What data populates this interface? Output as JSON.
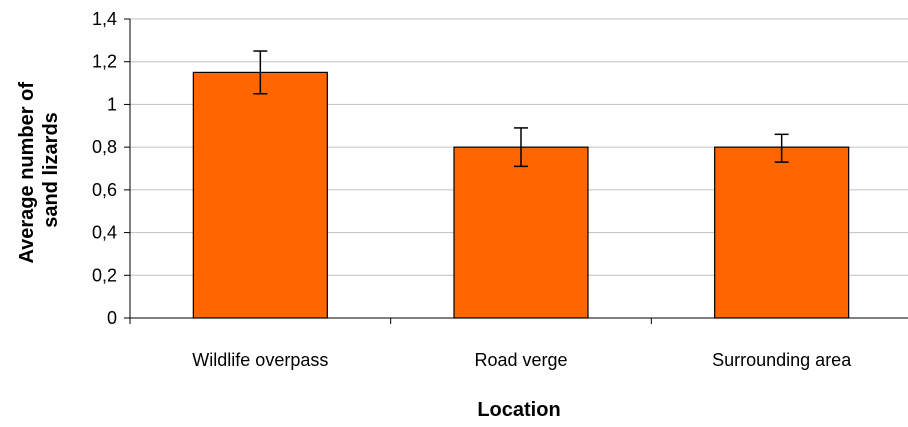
{
  "chart_data": {
    "type": "bar",
    "title": "",
    "xlabel": "Location",
    "ylabel_lines": [
      "Average number of",
      "sand lizards"
    ],
    "categories": [
      "Wildlife overpass",
      "Road verge",
      "Surrounding area"
    ],
    "values": [
      1.15,
      0.8,
      0.8
    ],
    "error_low": [
      1.05,
      0.71,
      0.73
    ],
    "error_high": [
      1.25,
      0.89,
      0.86
    ],
    "ylim": [
      0,
      1.4
    ],
    "yticks": [
      {
        "value": 0,
        "label": "0"
      },
      {
        "value": 0.2,
        "label": "0,2"
      },
      {
        "value": 0.4,
        "label": "0,4"
      },
      {
        "value": 0.6,
        "label": "0,6"
      },
      {
        "value": 0.8,
        "label": "0,8"
      },
      {
        "value": 1.0,
        "label": "1"
      },
      {
        "value": 1.2,
        "label": "1,2"
      },
      {
        "value": 1.4,
        "label": "1,4"
      }
    ],
    "grid": true,
    "legend": "none",
    "colors": {
      "bar_fill": "#ff6600",
      "bar_stroke": "#000000",
      "grid": "#c0c0c0",
      "axis": "#000000",
      "text": "#000000"
    }
  }
}
